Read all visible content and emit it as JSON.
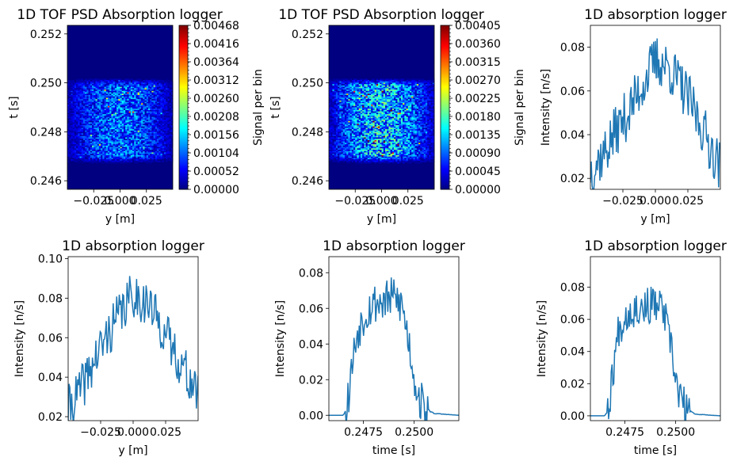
{
  "chart_data": [
    {
      "type": "heatmap",
      "title": "1D TOF PSD Absorption logger",
      "xlabel": "y [m]",
      "ylabel": "t [s]",
      "colorbar_label": "Signal per bin",
      "colormap": "jet",
      "x_ticks": [
        "−0.025",
        "0.000",
        "0.025"
      ],
      "x_tick_values": [
        -0.025,
        0.0,
        0.025
      ],
      "xlim": [
        -0.05,
        0.05
      ],
      "y_ticks": [
        "0.246",
        "0.248",
        "0.250",
        "0.252"
      ],
      "y_tick_values": [
        0.246,
        0.248,
        0.25,
        0.252
      ],
      "ylim": [
        0.24565,
        0.25235
      ],
      "colorbar_ticks": [
        "0.00000",
        "0.00052",
        "0.00104",
        "0.00156",
        "0.00208",
        "0.00260",
        "0.00312",
        "0.00364",
        "0.00416",
        "0.00468"
      ],
      "colorbar_max": 0.00468,
      "signal_band_t": [
        0.2468,
        0.2501
      ],
      "peak_t": 0.2484,
      "typical_level": 0.0009
    },
    {
      "type": "heatmap",
      "title": "1D TOF PSD Absorption logger",
      "xlabel": "y [m]",
      "ylabel": "t [s]",
      "colorbar_label": "Signal per bin",
      "colormap": "jet",
      "x_ticks": [
        "−0.025",
        "0.000",
        "0.025"
      ],
      "x_tick_values": [
        -0.025,
        0.0,
        0.025
      ],
      "xlim": [
        -0.05,
        0.05
      ],
      "y_ticks": [
        "0.246",
        "0.248",
        "0.250",
        "0.252"
      ],
      "y_tick_values": [
        0.246,
        0.248,
        0.25,
        0.252
      ],
      "ylim": [
        0.24565,
        0.25235
      ],
      "colorbar_ticks": [
        "0.00000",
        "0.00045",
        "0.00090",
        "0.00135",
        "0.00180",
        "0.00225",
        "0.00270",
        "0.00315",
        "0.00360",
        "0.00405"
      ],
      "colorbar_max": 0.00405,
      "signal_band_t": [
        0.2468,
        0.2501
      ],
      "peak_t": 0.2484,
      "typical_level": 0.0011
    },
    {
      "type": "line",
      "title": "1D absorption logger",
      "xlabel": "y [m]",
      "ylabel": "Intensity [n/s]",
      "x_ticks": [
        "−0.025",
        "0.000",
        "0.025"
      ],
      "x_tick_values": [
        -0.025,
        0.0,
        0.025
      ],
      "xlim": [
        -0.05,
        0.05
      ],
      "y_ticks": [
        "0.02",
        "0.04",
        "0.06",
        "0.08"
      ],
      "y_tick_values": [
        0.02,
        0.04,
        0.06,
        0.08
      ],
      "ylim": [
        0.015,
        0.09
      ],
      "color": "#1f77b4",
      "x": [
        -0.05,
        -0.04,
        -0.03,
        -0.02,
        -0.01,
        0.0,
        0.01,
        0.02,
        0.03,
        0.04,
        0.05
      ],
      "y": [
        0.024,
        0.031,
        0.042,
        0.051,
        0.063,
        0.074,
        0.071,
        0.062,
        0.051,
        0.038,
        0.025
      ]
    },
    {
      "type": "line",
      "title": "1D absorption logger",
      "xlabel": "y [m]",
      "ylabel": "Intensity [n/s]",
      "x_ticks": [
        "−0.025",
        "0.000",
        "0.025"
      ],
      "x_tick_values": [
        -0.025,
        0.0,
        0.025
      ],
      "xlim": [
        -0.05,
        0.05
      ],
      "y_ticks": [
        "0.02",
        "0.04",
        "0.06",
        "0.08",
        "0.10"
      ],
      "y_tick_values": [
        0.02,
        0.04,
        0.06,
        0.08,
        0.1
      ],
      "ylim": [
        0.018,
        0.101
      ],
      "color": "#1f77b4",
      "x": [
        -0.05,
        -0.04,
        -0.03,
        -0.02,
        -0.01,
        0.0,
        0.01,
        0.02,
        0.03,
        0.04,
        0.05
      ],
      "y": [
        0.024,
        0.034,
        0.048,
        0.061,
        0.072,
        0.082,
        0.078,
        0.068,
        0.055,
        0.043,
        0.03
      ]
    },
    {
      "type": "line",
      "title": "1D absorption logger",
      "xlabel": "time [s]",
      "ylabel": "Intensity [n/s]",
      "x_ticks": [
        "0.2475",
        "0.2500"
      ],
      "x_tick_values": [
        0.2475,
        0.25
      ],
      "xlim": [
        0.2458,
        0.2522
      ],
      "y_ticks": [
        "0.00",
        "0.02",
        "0.04",
        "0.06",
        "0.08"
      ],
      "y_tick_values": [
        0.0,
        0.02,
        0.04,
        0.06,
        0.08
      ],
      "ylim": [
        -0.003,
        0.089
      ],
      "color": "#1f77b4",
      "x": [
        0.2458,
        0.2465,
        0.2467,
        0.2469,
        0.2472,
        0.2476,
        0.248,
        0.2485,
        0.249,
        0.2494,
        0.2497,
        0.25,
        0.2502,
        0.2505,
        0.251,
        0.2522
      ],
      "y": [
        0.0,
        0.0,
        0.004,
        0.025,
        0.047,
        0.058,
        0.063,
        0.064,
        0.066,
        0.062,
        0.044,
        0.022,
        0.011,
        0.004,
        0.001,
        0.0
      ]
    },
    {
      "type": "line",
      "title": "1D absorption logger",
      "xlabel": "time [s]",
      "ylabel": "Intensity [n/s]",
      "x_ticks": [
        "0.2475",
        "0.2500"
      ],
      "x_tick_values": [
        0.2475,
        0.25
      ],
      "xlim": [
        0.2458,
        0.2522
      ],
      "y_ticks": [
        "0.00",
        "0.02",
        "0.04",
        "0.06",
        "0.08"
      ],
      "y_tick_values": [
        0.0,
        0.02,
        0.04,
        0.06,
        0.08
      ],
      "ylim": [
        -0.003,
        0.099
      ],
      "color": "#1f77b4",
      "x": [
        0.2458,
        0.2465,
        0.2467,
        0.2469,
        0.2472,
        0.2476,
        0.248,
        0.2485,
        0.249,
        0.2494,
        0.2497,
        0.25,
        0.2502,
        0.2505,
        0.251,
        0.2522
      ],
      "y": [
        0.0,
        0.0,
        0.004,
        0.027,
        0.055,
        0.064,
        0.067,
        0.068,
        0.069,
        0.066,
        0.047,
        0.023,
        0.012,
        0.004,
        0.001,
        0.0
      ]
    }
  ]
}
